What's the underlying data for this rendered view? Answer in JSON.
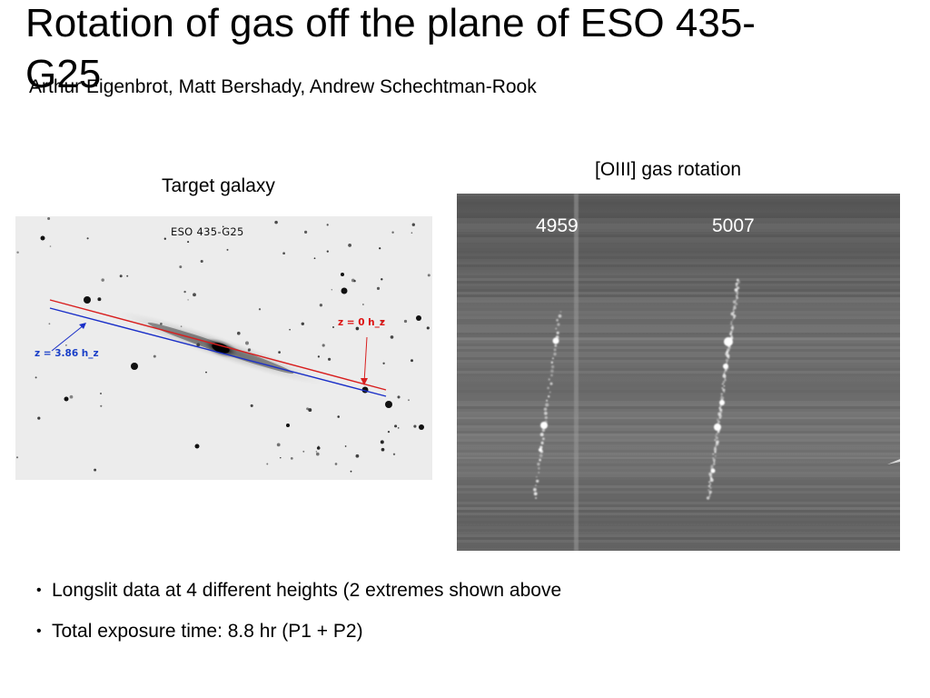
{
  "slide": {
    "title": "Rotation of gas off the plane of ESO 435-G25",
    "authors": "Arthur Eigenbrot, Matt Bershady,  Andrew Schechtman-Rook"
  },
  "left_panel": {
    "label": "Target galaxy",
    "image_caption": "ESO 435-G25",
    "annotation_red": "z = 0 h_z",
    "annotation_blue": "z = 3.86 h_z",
    "colors": {
      "red_line": "#d81e1e",
      "blue_line": "#1a2fc8"
    }
  },
  "right_panel": {
    "label": "[OIII] gas rotation",
    "line_labels": [
      "4959",
      "5007"
    ]
  },
  "bullets": [
    "Longslit data at 4 different heights (2 extremes shown above",
    "Total exposure time: 8.8 hr (P1 + P2)"
  ],
  "icons": {
    "bullet": "bullet-dot-icon"
  }
}
